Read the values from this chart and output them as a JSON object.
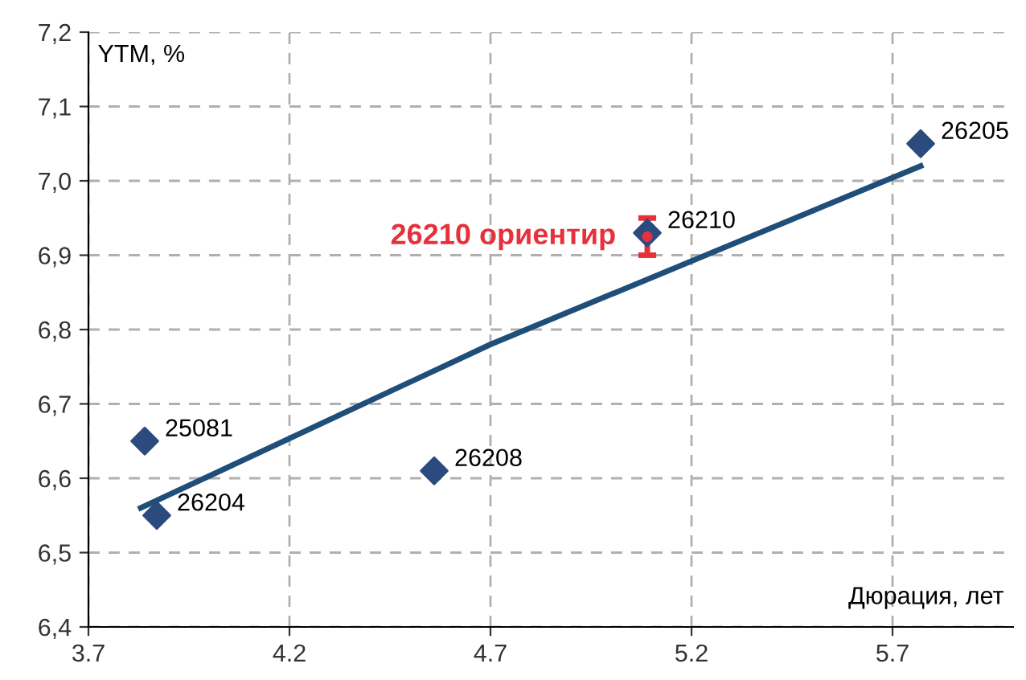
{
  "chart_data": {
    "type": "scatter",
    "xlabel": "Дюрация, лет",
    "ylabel": "YTM, %",
    "series": [
      {
        "type": "line",
        "color": "#1f4e79",
        "x": [
          3.83,
          4.7,
          5.77
        ],
        "values": [
          6.56,
          6.78,
          7.02
        ],
        "marker": "none",
        "line_style": "solid"
      },
      {
        "color": "#2b4a7e",
        "marker": "diamond",
        "x": [
          3.84,
          3.87,
          4.56,
          5.09,
          5.77
        ],
        "values": [
          6.65,
          6.55,
          6.61,
          6.93,
          7.05
        ]
      },
      {
        "type": "scatter",
        "color": "#e8303a",
        "marker": "circle",
        "x": [
          5.09
        ],
        "values": [
          6.925
        ],
        "errors": [
          [
            6.9,
            6.95
          ]
        ]
      }
    ],
    "annotations": [
      {
        "text": "25081",
        "x": 3.84,
        "y": 6.65
      },
      {
        "text": "26204",
        "x": 3.87,
        "y": 6.55
      },
      {
        "text": "26208",
        "x": 4.56,
        "y": 6.61
      },
      {
        "text": "26210",
        "x": 5.09,
        "y": 6.93
      },
      {
        "text": "26205",
        "x": 5.77,
        "y": 7.05
      },
      {
        "text": "26210 ориентир",
        "x": 5.09,
        "y": 6.925
      }
    ],
    "xlim": [
      3.7,
      6.0
    ],
    "ylim": [
      6.4,
      7.2
    ],
    "xticks": [
      3.7,
      4.2,
      4.7,
      5.2,
      5.7
    ],
    "yticks": [
      {
        "value": 6.4,
        "label": "6,4"
      },
      {
        "value": 6.5,
        "label": "6,5"
      },
      {
        "value": 6.6,
        "label": "6,6"
      },
      {
        "value": 6.7,
        "label": "6,7"
      },
      {
        "value": 6.8,
        "label": "6,8"
      },
      {
        "value": 6.9,
        "label": "6,9"
      },
      {
        "value": 7.0,
        "label": "7,0"
      },
      {
        "value": 7.1,
        "label": "7,1"
      },
      {
        "value": 7.2,
        "label": "7,2"
      }
    ],
    "grid": true,
    "legend": false
  }
}
